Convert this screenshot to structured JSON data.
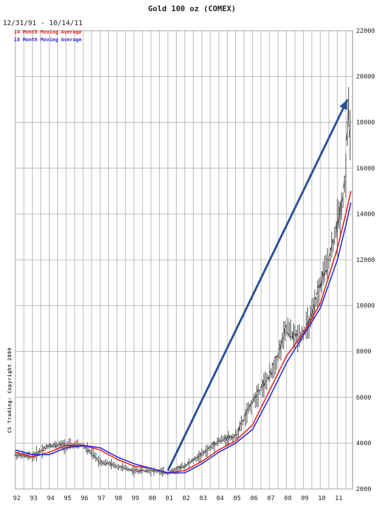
{
  "colors": {
    "ma14": "#e02020",
    "ma18": "#2828d8",
    "arrow": "#2b4f97",
    "price": "#4a4a4a",
    "grid": "#a8a8a0"
  },
  "header": {
    "title": "Gold 100 oz (COMEX)",
    "date_range": "12/31/91 - 10/14/11",
    "legend_14": "14 Month Moving Average",
    "legend_18": "18 Month Moving Average",
    "copyright": "CS Trading: Copyright 2009"
  },
  "chart_data": {
    "type": "line",
    "title": "Gold 100 oz (COMEX)",
    "x_tick_labels": [
      "92",
      "93",
      "94",
      "95",
      "96",
      "97",
      "98",
      "99",
      "00",
      "01",
      "02",
      "03",
      "04",
      "05",
      "06",
      "07",
      "08",
      "09",
      "10",
      "11"
    ],
    "y_tick_labels": [
      "22000",
      "20000",
      "18000",
      "16000",
      "14000",
      "12000",
      "10000",
      "8000",
      "6000",
      "4000",
      "2000"
    ],
    "ylim": [
      2000,
      22000
    ],
    "xlim": [
      1992,
      2011.9
    ],
    "grid": true,
    "legend_position": "top-left",
    "series": [
      {
        "name": "Price",
        "x": [
          1992,
          1993,
          1994,
          1995,
          1996,
          1997,
          1998,
          1999,
          2000,
          2001,
          2002,
          2003,
          2004,
          2005,
          2006,
          2006.5,
          2007,
          2007.5,
          2008,
          2008.5,
          2009,
          2009.5,
          2010,
          2010.5,
          2011,
          2011.3,
          2011.5,
          2011.65,
          2011.8
        ],
        "y": [
          3500,
          3400,
          3900,
          3900,
          3900,
          3200,
          3000,
          2800,
          2800,
          2700,
          3000,
          3500,
          4100,
          4300,
          5800,
          6400,
          6900,
          7800,
          9000,
          8600,
          8800,
          9500,
          10900,
          12000,
          13500,
          14500,
          15800,
          18800,
          16800
        ]
      },
      {
        "name": "14 Month Moving Average",
        "x": [
          1992,
          1993,
          1994,
          1995,
          1996,
          1997,
          1998,
          1999,
          2000,
          2001,
          2002,
          2003,
          2004,
          2005,
          2006,
          2007,
          2008,
          2009,
          2010,
          2011,
          2011.5,
          2011.8
        ],
        "y": [
          3600,
          3400,
          3600,
          3900,
          3900,
          3700,
          3300,
          3000,
          2900,
          2700,
          2800,
          3200,
          3700,
          4100,
          4800,
          6300,
          7800,
          8800,
          10100,
          12500,
          14000,
          15000
        ]
      },
      {
        "name": "18 Month Moving Average",
        "x": [
          1992,
          1993,
          1994,
          1995,
          1996,
          1997,
          1998,
          1999,
          2000,
          2001,
          2002,
          2003,
          2004,
          2005,
          2006,
          2007,
          2008,
          2009,
          2010,
          2011,
          2011.5,
          2011.8
        ],
        "y": [
          3700,
          3500,
          3500,
          3800,
          3900,
          3800,
          3400,
          3100,
          2900,
          2700,
          2700,
          3100,
          3600,
          4000,
          4600,
          6000,
          7500,
          8700,
          9900,
          12000,
          13500,
          14500
        ]
      }
    ],
    "annotations": [
      {
        "type": "arrow",
        "from": [
          2001,
          2800
        ],
        "to": [
          2011.6,
          19000
        ]
      }
    ]
  }
}
